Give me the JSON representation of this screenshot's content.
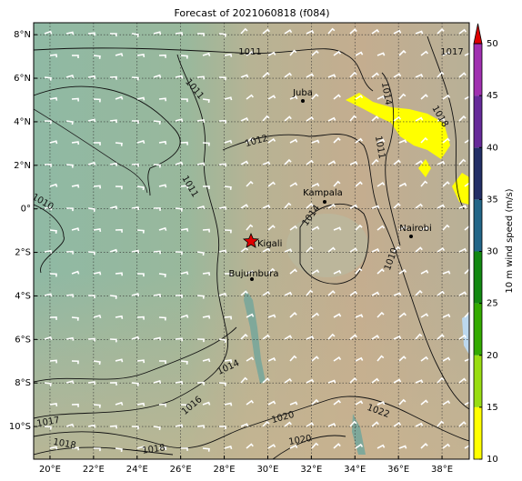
{
  "title": "Forecast of 2021060818 (f084)",
  "map": {
    "lonlim": [
      19.25,
      39.25
    ],
    "latlim": [
      -11.5,
      8.55
    ],
    "lon_ticks": [
      {
        "value": 20,
        "label": "20°E"
      },
      {
        "value": 22,
        "label": "22°E"
      },
      {
        "value": 24,
        "label": "24°E"
      },
      {
        "value": 26,
        "label": "26°E"
      },
      {
        "value": 28,
        "label": "28°E"
      },
      {
        "value": 30,
        "label": "30°E"
      },
      {
        "value": 32,
        "label": "32°E"
      },
      {
        "value": 34,
        "label": "34°E"
      },
      {
        "value": 36,
        "label": "36°E"
      },
      {
        "value": 38,
        "label": "38°E"
      }
    ],
    "lat_ticks": [
      {
        "value": 8,
        "label": "8°N"
      },
      {
        "value": 6,
        "label": "6°N"
      },
      {
        "value": 4,
        "label": "4°N"
      },
      {
        "value": 2,
        "label": "2°N"
      },
      {
        "value": 0,
        "label": "0°"
      },
      {
        "value": -2,
        "label": "2°S"
      },
      {
        "value": -4,
        "label": "4°S"
      },
      {
        "value": -6,
        "label": "6°S"
      },
      {
        "value": -8,
        "label": "8°S"
      },
      {
        "value": -10,
        "label": "10°S"
      }
    ],
    "cities": [
      "Juba",
      "Kampala",
      "Nairobi",
      "Kigali",
      "Bujumbura"
    ],
    "isobar_labels": [
      "1011",
      "1011",
      "1012",
      "1011",
      "1010",
      "1017",
      "1014",
      "1018",
      "1011",
      "1014",
      "1010",
      "1014",
      "1016",
      "1020",
      "1022",
      "1017",
      "1018",
      "1018",
      "1020"
    ]
  },
  "colorbar": {
    "label": "10 m wind speed (m/s)",
    "ticks": [
      10,
      15,
      20,
      25,
      30,
      35,
      40,
      45,
      50
    ],
    "colors": [
      "#ffff00",
      "#99dd11",
      "#33aa00",
      "#118811",
      "#226688",
      "#222e66",
      "#662a99",
      "#a030b0"
    ],
    "extend_color": "#dd0000"
  }
}
